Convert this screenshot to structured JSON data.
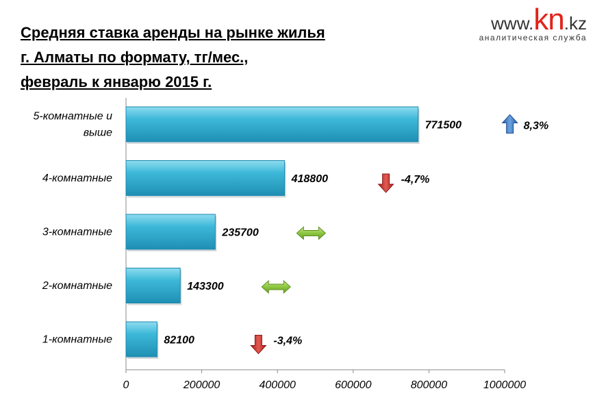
{
  "chart_data": {
    "type": "bar",
    "orientation": "horizontal",
    "title_lines": [
      "Средняя ставка аренды на рынке жилья",
      "г. Алматы по формату, тг/мес.,",
      "февраль к январю 2015 г."
    ],
    "categories": [
      "5-комнатные и выше",
      "4-комнатные",
      "3-комнатные",
      "2-комнатные",
      "1-комнатные"
    ],
    "category_label_lines": [
      [
        "5-комнатные и",
        "выше"
      ],
      [
        "4-комнатные"
      ],
      [
        "3-комнатные"
      ],
      [
        "2-комнатные"
      ],
      [
        "1-комнатные"
      ]
    ],
    "values": [
      771500,
      418800,
      235700,
      143300,
      82100
    ],
    "changes": [
      {
        "direction": "up",
        "text": "8,3%"
      },
      {
        "direction": "down",
        "text": "-4,7%"
      },
      {
        "direction": "flat",
        "text": ""
      },
      {
        "direction": "flat",
        "text": ""
      },
      {
        "direction": "down",
        "text": "-3,4%"
      }
    ],
    "xlim": [
      0,
      1000000
    ],
    "x_ticks": [
      0,
      200000,
      400000,
      600000,
      800000,
      1000000
    ],
    "grid": false,
    "bar_color": "#3db8d8",
    "arrow_colors": {
      "up": "#3a78c2",
      "down": "#c8302c",
      "flat": "#8cc63f"
    }
  },
  "logo": {
    "www": "www.",
    "kn": "kn",
    "kz": ".kz",
    "subtitle": "аналитическая служба"
  }
}
